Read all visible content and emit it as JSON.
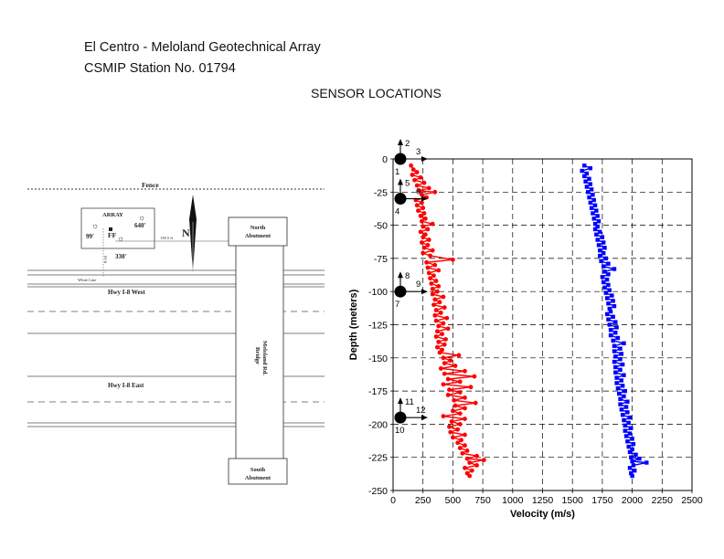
{
  "header": {
    "title": "El Centro - Meloland Geotechnical Array",
    "station": "CSMIP Station No. 01794",
    "section": "SENSOR LOCATIONS"
  },
  "site_map": {
    "fence": "Fence",
    "array": "ARRAY",
    "depths": [
      "99'",
      "640'",
      "330'"
    ],
    "ff": "FF",
    "north": "N",
    "north_abutment": [
      "North",
      "Abutment"
    ],
    "south_abutment": [
      "South",
      "Abutment"
    ],
    "bridge": [
      "Meloland Rd.",
      "Bridge"
    ],
    "hwy_west": "Hwy I-8 West",
    "hwy_east": "Hwy I-8 East",
    "white_line": "White Line",
    "distance_right": "139.5 ft",
    "distance_down": "63 ft"
  },
  "sensor_labels": [
    {
      "dot": "1",
      "up": "2",
      "right": "3",
      "depth_m": 0
    },
    {
      "dot": "4",
      "up": "5",
      "right": "6",
      "depth_m": -30
    },
    {
      "dot": "7",
      "up": "8",
      "right": "9",
      "depth_m": -100
    },
    {
      "dot": "10",
      "up": "11",
      "right": "12",
      "depth_m": -195
    }
  ],
  "chart_data": {
    "type": "line",
    "xlabel": "Velocity (m/s)",
    "ylabel": "Depth (meters)",
    "xlim": [
      0,
      2500
    ],
    "ylim": [
      -250,
      0
    ],
    "x_ticks": [
      "0",
      "250",
      "500",
      "750",
      "1000",
      "1250",
      "1500",
      "1750",
      "2000",
      "2250",
      "2500"
    ],
    "y_ticks": [
      "0",
      "-25",
      "-50",
      "-75",
      "-100",
      "-125",
      "-150",
      "-175",
      "-200",
      "-225",
      "-250"
    ],
    "grid": "dashed",
    "series": [
      {
        "color": "#ff0000",
        "marker": "circle",
        "points": [
          [
            150,
            -5
          ],
          [
            170,
            -8
          ],
          [
            200,
            -10
          ],
          [
            160,
            -12
          ],
          [
            230,
            -14
          ],
          [
            180,
            -16
          ],
          [
            260,
            -18
          ],
          [
            200,
            -20
          ],
          [
            300,
            -22
          ],
          [
            220,
            -24
          ],
          [
            350,
            -25
          ],
          [
            240,
            -27
          ],
          [
            280,
            -29
          ],
          [
            190,
            -31
          ],
          [
            240,
            -33
          ],
          [
            200,
            -35
          ],
          [
            250,
            -37
          ],
          [
            210,
            -39
          ],
          [
            260,
            -41
          ],
          [
            230,
            -43
          ],
          [
            270,
            -45
          ],
          [
            240,
            -47
          ],
          [
            330,
            -49
          ],
          [
            250,
            -51
          ],
          [
            290,
            -53
          ],
          [
            230,
            -55
          ],
          [
            270,
            -57
          ],
          [
            250,
            -59
          ],
          [
            300,
            -61
          ],
          [
            240,
            -63
          ],
          [
            290,
            -65
          ],
          [
            260,
            -67
          ],
          [
            330,
            -69
          ],
          [
            250,
            -71
          ],
          [
            310,
            -73
          ],
          [
            500,
            -76
          ],
          [
            280,
            -78
          ],
          [
            350,
            -80
          ],
          [
            290,
            -82
          ],
          [
            380,
            -84
          ],
          [
            300,
            -86
          ],
          [
            340,
            -88
          ],
          [
            310,
            -90
          ],
          [
            360,
            -92
          ],
          [
            320,
            -94
          ],
          [
            380,
            -96
          ],
          [
            330,
            -98
          ],
          [
            370,
            -100
          ],
          [
            330,
            -102
          ],
          [
            420,
            -104
          ],
          [
            350,
            -106
          ],
          [
            390,
            -108
          ],
          [
            340,
            -110
          ],
          [
            430,
            -112
          ],
          [
            360,
            -114
          ],
          [
            400,
            -116
          ],
          [
            350,
            -118
          ],
          [
            450,
            -120
          ],
          [
            360,
            -122
          ],
          [
            420,
            -124
          ],
          [
            380,
            -126
          ],
          [
            460,
            -128
          ],
          [
            370,
            -130
          ],
          [
            410,
            -132
          ],
          [
            360,
            -134
          ],
          [
            440,
            -136
          ],
          [
            380,
            -138
          ],
          [
            430,
            -140
          ],
          [
            370,
            -142
          ],
          [
            410,
            -144
          ],
          [
            390,
            -146
          ],
          [
            550,
            -148
          ],
          [
            420,
            -150
          ],
          [
            480,
            -152
          ],
          [
            430,
            -154
          ],
          [
            520,
            -156
          ],
          [
            400,
            -158
          ],
          [
            600,
            -160
          ],
          [
            430,
            -162
          ],
          [
            680,
            -164
          ],
          [
            460,
            -166
          ],
          [
            560,
            -168
          ],
          [
            420,
            -170
          ],
          [
            650,
            -172
          ],
          [
            470,
            -174
          ],
          [
            560,
            -176
          ],
          [
            460,
            -178
          ],
          [
            600,
            -180
          ],
          [
            510,
            -182
          ],
          [
            690,
            -184
          ],
          [
            520,
            -186
          ],
          [
            600,
            -188
          ],
          [
            500,
            -190
          ],
          [
            560,
            -192
          ],
          [
            420,
            -194
          ],
          [
            600,
            -196
          ],
          [
            490,
            -198
          ],
          [
            560,
            -200
          ],
          [
            470,
            -202
          ],
          [
            540,
            -204
          ],
          [
            480,
            -206
          ],
          [
            600,
            -208
          ],
          [
            500,
            -210
          ],
          [
            570,
            -212
          ],
          [
            540,
            -214
          ],
          [
            600,
            -216
          ],
          [
            560,
            -218
          ],
          [
            620,
            -220
          ],
          [
            580,
            -222
          ],
          [
            700,
            -224
          ],
          [
            620,
            -226
          ],
          [
            760,
            -227
          ],
          [
            640,
            -229
          ],
          [
            700,
            -231
          ],
          [
            600,
            -233
          ],
          [
            660,
            -235
          ],
          [
            620,
            -237
          ],
          [
            640,
            -239
          ]
        ]
      },
      {
        "color": "#0000ff",
        "marker": "square",
        "points": [
          [
            1600,
            -5
          ],
          [
            1650,
            -7
          ],
          [
            1580,
            -9
          ],
          [
            1620,
            -11
          ],
          [
            1600,
            -13
          ],
          [
            1640,
            -15
          ],
          [
            1610,
            -17
          ],
          [
            1650,
            -19
          ],
          [
            1620,
            -21
          ],
          [
            1660,
            -23
          ],
          [
            1630,
            -25
          ],
          [
            1670,
            -27
          ],
          [
            1640,
            -29
          ],
          [
            1680,
            -31
          ],
          [
            1650,
            -33
          ],
          [
            1690,
            -35
          ],
          [
            1660,
            -37
          ],
          [
            1700,
            -39
          ],
          [
            1670,
            -41
          ],
          [
            1710,
            -43
          ],
          [
            1680,
            -45
          ],
          [
            1720,
            -47
          ],
          [
            1690,
            -49
          ],
          [
            1710,
            -51
          ],
          [
            1690,
            -53
          ],
          [
            1730,
            -55
          ],
          [
            1700,
            -57
          ],
          [
            1750,
            -59
          ],
          [
            1710,
            -61
          ],
          [
            1760,
            -63
          ],
          [
            1720,
            -65
          ],
          [
            1770,
            -67
          ],
          [
            1730,
            -69
          ],
          [
            1760,
            -71
          ],
          [
            1730,
            -73
          ],
          [
            1780,
            -75
          ],
          [
            1740,
            -77
          ],
          [
            1800,
            -79
          ],
          [
            1760,
            -81
          ],
          [
            1850,
            -83
          ],
          [
            1770,
            -85
          ],
          [
            1800,
            -87
          ],
          [
            1750,
            -89
          ],
          [
            1790,
            -91
          ],
          [
            1760,
            -93
          ],
          [
            1800,
            -95
          ],
          [
            1770,
            -97
          ],
          [
            1810,
            -99
          ],
          [
            1780,
            -101
          ],
          [
            1830,
            -103
          ],
          [
            1790,
            -105
          ],
          [
            1840,
            -107
          ],
          [
            1800,
            -109
          ],
          [
            1850,
            -111
          ],
          [
            1810,
            -113
          ],
          [
            1820,
            -115
          ],
          [
            1790,
            -117
          ],
          [
            1840,
            -119
          ],
          [
            1800,
            -121
          ],
          [
            1860,
            -123
          ],
          [
            1810,
            -125
          ],
          [
            1870,
            -127
          ],
          [
            1820,
            -129
          ],
          [
            1860,
            -131
          ],
          [
            1820,
            -133
          ],
          [
            1880,
            -135
          ],
          [
            1840,
            -137
          ],
          [
            1930,
            -139
          ],
          [
            1850,
            -141
          ],
          [
            1900,
            -143
          ],
          [
            1850,
            -145
          ],
          [
            1910,
            -147
          ],
          [
            1860,
            -149
          ],
          [
            1900,
            -151
          ],
          [
            1850,
            -153
          ],
          [
            1920,
            -155
          ],
          [
            1860,
            -157
          ],
          [
            1900,
            -159
          ],
          [
            1860,
            -161
          ],
          [
            1930,
            -163
          ],
          [
            1870,
            -165
          ],
          [
            1910,
            -167
          ],
          [
            1870,
            -169
          ],
          [
            1920,
            -171
          ],
          [
            1880,
            -173
          ],
          [
            1940,
            -175
          ],
          [
            1890,
            -177
          ],
          [
            1930,
            -179
          ],
          [
            1900,
            -181
          ],
          [
            1960,
            -183
          ],
          [
            1900,
            -185
          ],
          [
            1950,
            -187
          ],
          [
            1910,
            -189
          ],
          [
            1960,
            -191
          ],
          [
            1920,
            -193
          ],
          [
            1980,
            -195
          ],
          [
            1930,
            -197
          ],
          [
            1970,
            -199
          ],
          [
            1940,
            -201
          ],
          [
            1990,
            -203
          ],
          [
            1940,
            -205
          ],
          [
            1980,
            -207
          ],
          [
            1950,
            -209
          ],
          [
            2000,
            -211
          ],
          [
            1960,
            -213
          ],
          [
            2010,
            -215
          ],
          [
            1970,
            -217
          ],
          [
            2000,
            -219
          ],
          [
            1980,
            -221
          ],
          [
            2030,
            -223
          ],
          [
            1990,
            -225
          ],
          [
            2060,
            -226
          ],
          [
            2000,
            -228
          ],
          [
            2120,
            -229
          ],
          [
            2010,
            -231
          ],
          [
            1980,
            -233
          ],
          [
            2020,
            -235
          ],
          [
            1990,
            -237
          ],
          [
            2000,
            -239
          ]
        ]
      }
    ]
  }
}
